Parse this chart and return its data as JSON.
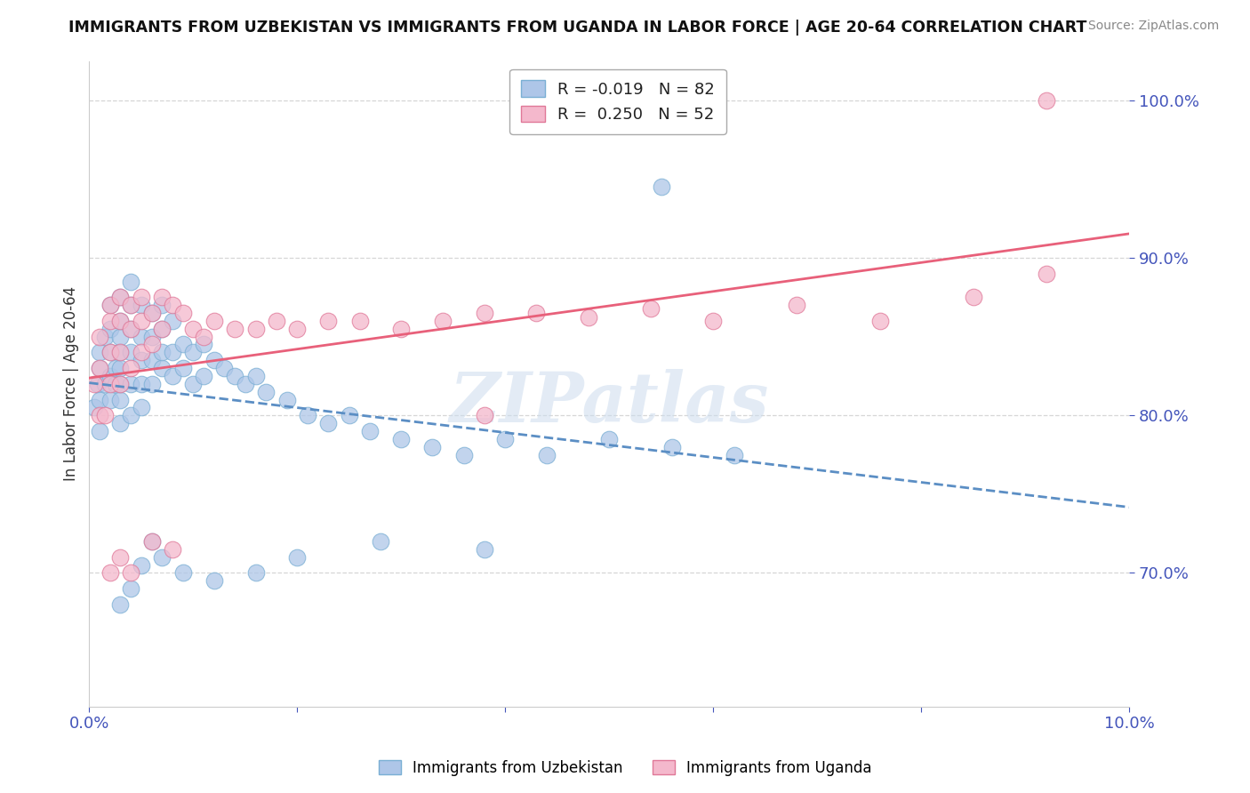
{
  "title": "IMMIGRANTS FROM UZBEKISTAN VS IMMIGRANTS FROM UGANDA IN LABOR FORCE | AGE 20-64 CORRELATION CHART",
  "source": "Source: ZipAtlas.com",
  "ylabel": "In Labor Force | Age 20-64",
  "xlim": [
    0.0,
    0.1
  ],
  "ylim": [
    0.615,
    1.025
  ],
  "yticks": [
    0.7,
    0.8,
    0.9,
    1.0
  ],
  "ytick_labels": [
    "70.0%",
    "80.0%",
    "90.0%",
    "100.0%"
  ],
  "xticks": [
    0.0,
    0.02,
    0.04,
    0.06,
    0.08,
    0.1
  ],
  "xtick_labels": [
    "0.0%",
    "",
    "",
    "",
    "",
    "10.0%"
  ],
  "watermark": "ZIPatlas",
  "uzbekistan_R": -0.019,
  "uzbekistan_N": 82,
  "uganda_R": 0.25,
  "uganda_N": 52,
  "uzbekistan_color": "#aec6e8",
  "uzbekistan_edge_color": "#7aafd4",
  "uganda_color": "#f4b8cc",
  "uganda_edge_color": "#e07898",
  "trend_uzbekistan_color": "#5b8ec4",
  "trend_uganda_color": "#e8607a",
  "background_color": "#ffffff",
  "grid_color": "#cccccc",
  "axis_color": "#4455bb",
  "title_color": "#111111",
  "source_color": "#888888",
  "uzbekistan_x": [
    0.0005,
    0.0008,
    0.001,
    0.001,
    0.001,
    0.001,
    0.0015,
    0.0015,
    0.002,
    0.002,
    0.002,
    0.002,
    0.002,
    0.0025,
    0.0025,
    0.003,
    0.003,
    0.003,
    0.003,
    0.003,
    0.003,
    0.003,
    0.003,
    0.004,
    0.004,
    0.004,
    0.004,
    0.004,
    0.004,
    0.005,
    0.005,
    0.005,
    0.005,
    0.005,
    0.006,
    0.006,
    0.006,
    0.006,
    0.007,
    0.007,
    0.007,
    0.007,
    0.008,
    0.008,
    0.008,
    0.009,
    0.009,
    0.01,
    0.01,
    0.011,
    0.011,
    0.012,
    0.013,
    0.014,
    0.015,
    0.016,
    0.017,
    0.019,
    0.021,
    0.023,
    0.025,
    0.027,
    0.03,
    0.033,
    0.036,
    0.04,
    0.044,
    0.05,
    0.056,
    0.062,
    0.003,
    0.004,
    0.005,
    0.006,
    0.007,
    0.009,
    0.012,
    0.016,
    0.02,
    0.028,
    0.038,
    0.055
  ],
  "uzbekistan_y": [
    0.805,
    0.82,
    0.79,
    0.81,
    0.83,
    0.84,
    0.82,
    0.85,
    0.81,
    0.825,
    0.84,
    0.855,
    0.87,
    0.82,
    0.83,
    0.795,
    0.81,
    0.82,
    0.83,
    0.84,
    0.85,
    0.86,
    0.875,
    0.8,
    0.82,
    0.84,
    0.855,
    0.87,
    0.885,
    0.805,
    0.82,
    0.835,
    0.85,
    0.87,
    0.82,
    0.835,
    0.85,
    0.865,
    0.83,
    0.84,
    0.855,
    0.87,
    0.825,
    0.84,
    0.86,
    0.83,
    0.845,
    0.82,
    0.84,
    0.825,
    0.845,
    0.835,
    0.83,
    0.825,
    0.82,
    0.825,
    0.815,
    0.81,
    0.8,
    0.795,
    0.8,
    0.79,
    0.785,
    0.78,
    0.775,
    0.785,
    0.775,
    0.785,
    0.78,
    0.775,
    0.68,
    0.69,
    0.705,
    0.72,
    0.71,
    0.7,
    0.695,
    0.7,
    0.71,
    0.72,
    0.715,
    0.945
  ],
  "uganda_x": [
    0.0005,
    0.001,
    0.001,
    0.001,
    0.0015,
    0.002,
    0.002,
    0.002,
    0.002,
    0.003,
    0.003,
    0.003,
    0.003,
    0.004,
    0.004,
    0.004,
    0.005,
    0.005,
    0.005,
    0.006,
    0.006,
    0.007,
    0.007,
    0.008,
    0.009,
    0.01,
    0.011,
    0.012,
    0.014,
    0.016,
    0.018,
    0.02,
    0.023,
    0.026,
    0.03,
    0.034,
    0.038,
    0.043,
    0.048,
    0.054,
    0.06,
    0.068,
    0.076,
    0.085,
    0.092,
    0.002,
    0.003,
    0.004,
    0.006,
    0.008,
    0.038,
    0.092
  ],
  "uganda_y": [
    0.82,
    0.8,
    0.83,
    0.85,
    0.8,
    0.82,
    0.84,
    0.86,
    0.87,
    0.82,
    0.84,
    0.86,
    0.875,
    0.83,
    0.855,
    0.87,
    0.84,
    0.86,
    0.875,
    0.845,
    0.865,
    0.855,
    0.875,
    0.87,
    0.865,
    0.855,
    0.85,
    0.86,
    0.855,
    0.855,
    0.86,
    0.855,
    0.86,
    0.86,
    0.855,
    0.86,
    0.865,
    0.865,
    0.862,
    0.868,
    0.86,
    0.87,
    0.86,
    0.875,
    0.89,
    0.7,
    0.71,
    0.7,
    0.72,
    0.715,
    0.8,
    1.0
  ]
}
